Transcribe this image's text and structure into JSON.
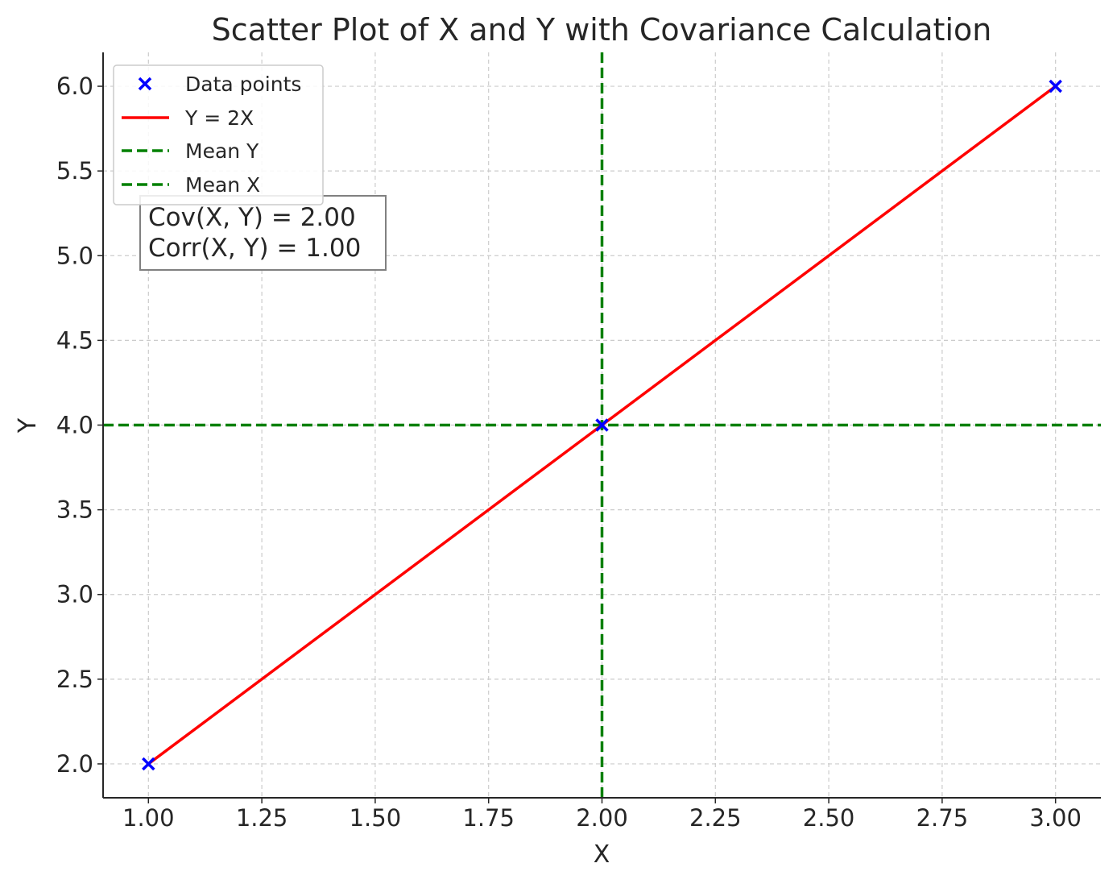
{
  "chart_data": {
    "type": "scatter",
    "title": "Scatter Plot of X and Y with Covariance Calculation",
    "xlabel": "X",
    "ylabel": "Y",
    "xlim": [
      0.9,
      3.1
    ],
    "ylim": [
      1.8,
      6.2
    ],
    "xticks": [
      "1.00",
      "1.25",
      "1.50",
      "1.75",
      "2.00",
      "2.25",
      "2.50",
      "2.75",
      "3.00"
    ],
    "yticks": [
      "2.0",
      "2.5",
      "3.0",
      "3.5",
      "4.0",
      "4.5",
      "5.0",
      "5.5",
      "6.0"
    ],
    "grid": true,
    "legend_position": "top-left",
    "series": [
      {
        "name": "Data points",
        "kind": "scatter",
        "marker": "x",
        "color": "#0000ff",
        "x": [
          1,
          2,
          3
        ],
        "y": [
          2,
          4,
          6
        ]
      },
      {
        "name": "Y = 2X",
        "kind": "line",
        "color": "#ff0000",
        "x": [
          1,
          2,
          3
        ],
        "y": [
          2,
          4,
          6
        ]
      },
      {
        "name": "Mean Y",
        "kind": "hline",
        "linestyle": "dashed",
        "color": "#008000",
        "y": 4.0
      },
      {
        "name": "Mean X",
        "kind": "vline",
        "linestyle": "dashed",
        "color": "#008000",
        "x": 2.0
      }
    ],
    "annotation": [
      "Cov(X, Y) = 2.00",
      "Corr(X, Y) = 1.00"
    ]
  }
}
